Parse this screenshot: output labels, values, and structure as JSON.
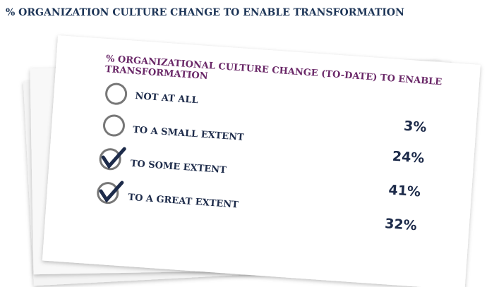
{
  "header": {
    "title": "% ORGANIZATION CULTURE CHANGE TO ENABLE TRANSFORMATION"
  },
  "card": {
    "title_lines": [
      "% ORGANIZATIONAL CULTURE CHANGE (TO-DATE) TO ENABLE",
      "TRANSFORMATION"
    ],
    "options": [
      "NOT AT ALL",
      "TO A SMALL EXTENT",
      "TO SOME EXTENT",
      "TO A GREAT EXTENT"
    ],
    "percentages": [
      "3%",
      "24%",
      "41%",
      "32%"
    ]
  }
}
